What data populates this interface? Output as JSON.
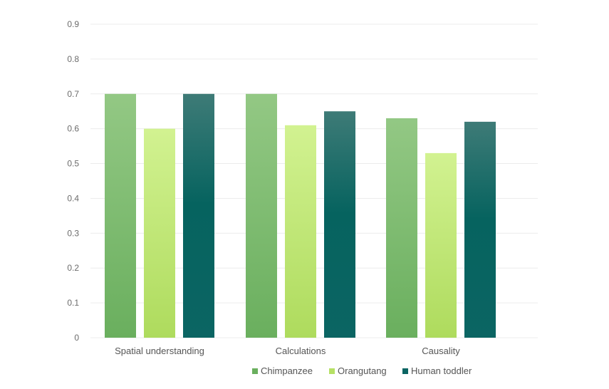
{
  "chart_data": {
    "type": "bar",
    "categories": [
      "Spatial understanding",
      "Calculations",
      "Causality"
    ],
    "series": [
      {
        "name": "Chimpanzee",
        "values": [
          0.7,
          0.7,
          0.63
        ],
        "color": "#6aaf5e"
      },
      {
        "name": "Orangutang",
        "values": [
          0.6,
          0.61,
          0.53
        ],
        "color": "#b6e065"
      },
      {
        "name": "Human toddler",
        "values": [
          0.7,
          0.65,
          0.62
        ],
        "color": "#0b6563"
      }
    ],
    "yticks": [
      "0",
      "0.1",
      "0.2",
      "0.3",
      "0.4",
      "0.5",
      "0.6",
      "0.7",
      "0.8",
      "0.9"
    ],
    "ylim": [
      0,
      0.9
    ],
    "grid": true,
    "legend": "bottom-center"
  }
}
